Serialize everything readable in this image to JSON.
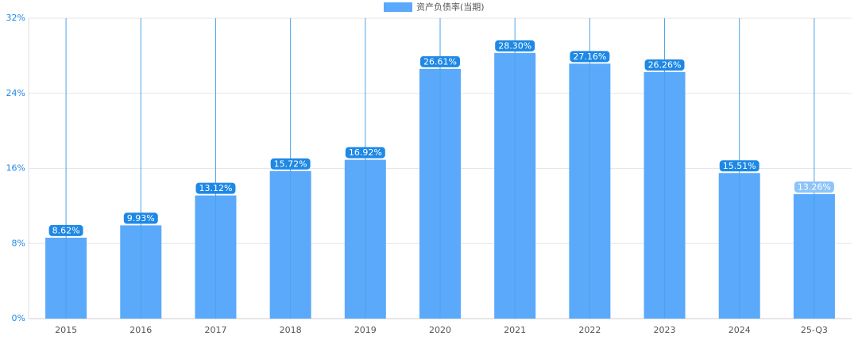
{
  "chart_data": {
    "type": "bar",
    "series": [
      {
        "name": "资产负债率(当期)",
        "color": "#5aa9fb",
        "values": [
          8.62,
          9.93,
          13.12,
          15.72,
          16.92,
          26.61,
          28.3,
          27.16,
          26.26,
          15.51,
          13.26
        ],
        "value_labels": [
          "8.62%",
          "9.93%",
          "13.12%",
          "15.72%",
          "16.92%",
          "26.61%",
          "28.30%",
          "27.16%",
          "26.26%",
          "15.51%",
          "13.26%"
        ]
      }
    ],
    "categories": [
      "2015",
      "2016",
      "2017",
      "2018",
      "2019",
      "2020",
      "2021",
      "2022",
      "2023",
      "2024",
      "25-Q3"
    ],
    "ylim": [
      0,
      32
    ],
    "yticks": [
      {
        "value": 0,
        "label": "0%"
      },
      {
        "value": 8,
        "label": "8%"
      },
      {
        "value": 16,
        "label": "16%"
      },
      {
        "value": 24,
        "label": "24%"
      },
      {
        "value": 32,
        "label": "32%"
      }
    ],
    "grid": true
  }
}
